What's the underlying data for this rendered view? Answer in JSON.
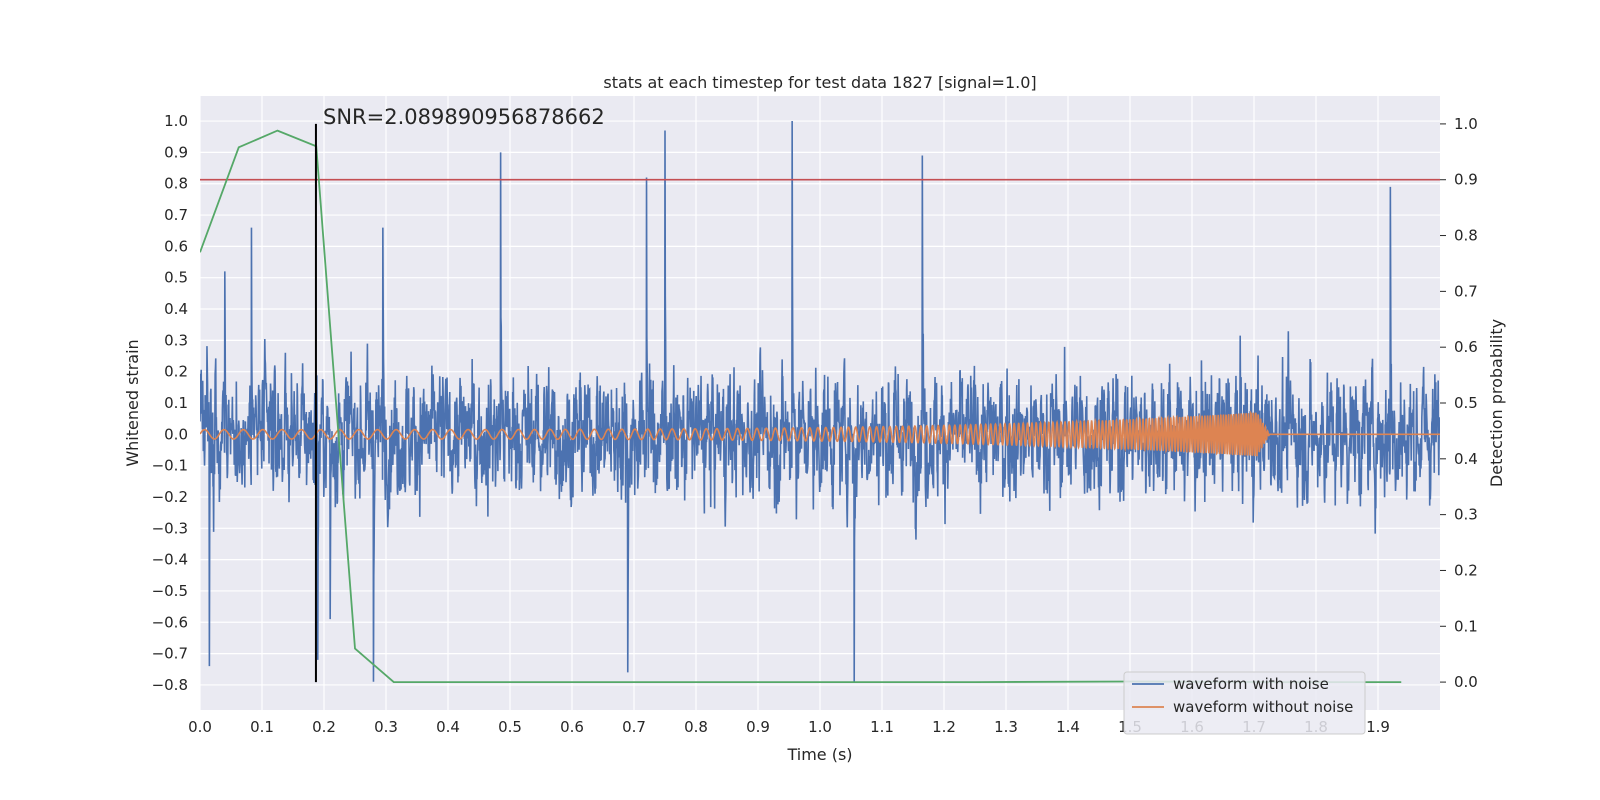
{
  "chart_data": {
    "type": "line",
    "title": "stats at each timestep for test data 1827 [signal=1.0]",
    "xlabel": "Time (s)",
    "ylabel": "Whitened strain",
    "ylabel_right": "Detection probability",
    "xlim": [
      0.0,
      2.0
    ],
    "ylim": [
      -0.88,
      1.08
    ],
    "ylim_right": [
      -0.05,
      1.05
    ],
    "x_ticks": [
      0.0,
      0.1,
      0.2,
      0.3,
      0.4,
      0.5,
      0.6,
      0.7,
      0.8,
      0.9,
      1.0,
      1.1,
      1.2,
      1.3,
      1.4,
      1.5,
      1.6,
      1.7,
      1.8,
      1.9
    ],
    "x_tick_labels": [
      "0.0",
      "0.1",
      "0.2",
      "0.3",
      "0.4",
      "0.5",
      "0.6",
      "0.7",
      "0.8",
      "0.9",
      "1.0",
      "1.1",
      "1.2",
      "1.3",
      "1.4",
      "1.5",
      "1.6",
      "1.7",
      "1.8",
      "1.9"
    ],
    "y_ticks": [
      -0.8,
      -0.7,
      -0.6,
      -0.5,
      -0.4,
      -0.3,
      -0.2,
      -0.1,
      0.0,
      0.1,
      0.2,
      0.3,
      0.4,
      0.5,
      0.6,
      0.7,
      0.8,
      0.9,
      1.0
    ],
    "y_tick_labels": [
      "−0.8",
      "−0.7",
      "−0.6",
      "−0.5",
      "−0.4",
      "−0.3",
      "−0.2",
      "−0.1",
      "0.0",
      "0.1",
      "0.2",
      "0.3",
      "0.4",
      "0.5",
      "0.6",
      "0.7",
      "0.8",
      "0.9",
      "1.0"
    ],
    "y_ticks_right": [
      0.0,
      0.1,
      0.2,
      0.3,
      0.4,
      0.5,
      0.6,
      0.7,
      0.8,
      0.9,
      1.0
    ],
    "y_tick_labels_right": [
      "0.0",
      "0.1",
      "0.2",
      "0.3",
      "0.4",
      "0.5",
      "0.6",
      "0.7",
      "0.8",
      "0.9",
      "1.0"
    ],
    "grid": true,
    "legend_placement": "lower-right",
    "series": [
      {
        "name": "waveform with noise",
        "axis": "left",
        "color": "#4c72b0",
        "style": "dense-noise",
        "x_range": [
          0.0,
          2.0
        ],
        "y_range": [
          -0.79,
          1.0
        ],
        "typical_amplitude": 0.25,
        "peaks": [
          {
            "x": 0.015,
            "y": -0.74
          },
          {
            "x": 0.04,
            "y": 0.52
          },
          {
            "x": 0.083,
            "y": 0.66
          },
          {
            "x": 0.19,
            "y": -0.72
          },
          {
            "x": 0.21,
            "y": -0.59
          },
          {
            "x": 0.28,
            "y": -0.79
          },
          {
            "x": 0.295,
            "y": 0.66
          },
          {
            "x": 0.485,
            "y": 0.9
          },
          {
            "x": 0.69,
            "y": -0.76
          },
          {
            "x": 0.72,
            "y": 0.82
          },
          {
            "x": 0.75,
            "y": 0.97
          },
          {
            "x": 0.955,
            "y": 1.0
          },
          {
            "x": 1.055,
            "y": -0.79
          },
          {
            "x": 1.165,
            "y": 0.89
          },
          {
            "x": 1.92,
            "y": 0.79
          }
        ]
      },
      {
        "name": "waveform without noise",
        "axis": "left",
        "color": "#dd8452",
        "style": "chirp",
        "amplitude_start": 0.015,
        "amplitude_end": 0.07,
        "frequency_start_hz": 32,
        "frequency_end_hz": 260,
        "merger_time": 1.705,
        "x_range": [
          0.0,
          2.0
        ]
      },
      {
        "name": "Detection probability",
        "axis": "right",
        "color": "#55a868",
        "x": [
          0.0,
          0.0625,
          0.125,
          0.1875,
          0.25,
          0.3125,
          0.375,
          0.5,
          0.75,
          1.0,
          1.25,
          1.5,
          1.75,
          1.9375
        ],
        "values": [
          0.77,
          0.958,
          0.988,
          0.96,
          0.06,
          0.0,
          0.0,
          0.0,
          0.0,
          0.0,
          0.0,
          0.001,
          0.0,
          0.0
        ]
      }
    ],
    "threshold": {
      "axis": "right",
      "y": 0.9,
      "color": "#c44e52"
    },
    "marker": {
      "x": 0.187,
      "y_range": [
        0.0,
        1.0
      ],
      "axis": "right",
      "color": "#000000",
      "label": "SNR=2.089890956878662"
    }
  }
}
